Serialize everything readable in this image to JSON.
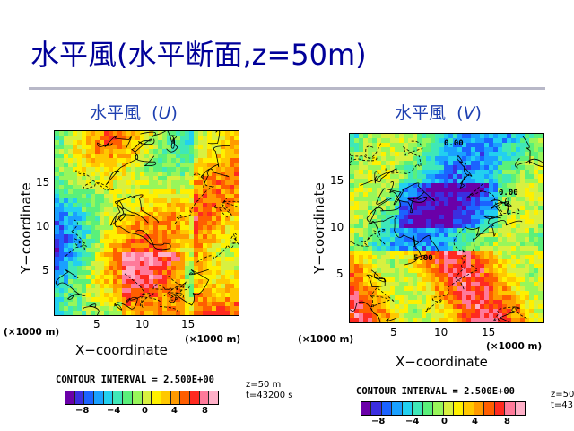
{
  "slide": {
    "title": "水平風(水平断面,z=50m)"
  },
  "panels": [
    {
      "title_prefix": "水平風",
      "var_open": "(",
      "var": "U",
      "var_close": ")",
      "y_label": "Y−coordinate",
      "x_label": "X−coordinate",
      "y_ticks": [
        "15",
        "10",
        "5"
      ],
      "x_ticks": [
        "5",
        "10",
        "15"
      ],
      "x_units_left": "(×1000 m)",
      "x_units_right": "(×1000 m)",
      "contour_interval": "CONTOUR INTERVAL = 2.500E+00",
      "meta": [
        "z=50 m",
        "t=43200 s"
      ],
      "colorbar_ticks": [
        "−8",
        "−4",
        "0",
        "4",
        "8"
      ],
      "contour_labels": []
    },
    {
      "title_prefix": "水平風",
      "var_open": "(",
      "var": "V",
      "var_close": ")",
      "y_label": "Y−coordinate",
      "x_label": "X−coordinate",
      "y_ticks": [
        "15",
        "10",
        "5"
      ],
      "x_ticks": [
        "5",
        "10",
        "15"
      ],
      "x_units_left": "(×1000 m)",
      "x_units_right": "(×1000 m)",
      "contour_interval": "CONTOUR INTERVAL = 2.500E+00",
      "meta": [
        "z=50",
        "t=43"
      ],
      "colorbar_ticks": [
        "−8",
        "−4",
        "0",
        "4",
        "8"
      ],
      "contour_labels": [
        "0.00",
        "0.00",
        "5.00"
      ]
    }
  ],
  "colors": {
    "title": "#000099",
    "colorbar": [
      "#6a00a8",
      "#3b2ee0",
      "#1b63ff",
      "#1aa0ff",
      "#22d0f0",
      "#3fe8b8",
      "#5af07a",
      "#98f65a",
      "#d8f040",
      "#fff000",
      "#ffc800",
      "#ff9a00",
      "#ff5e00",
      "#ff2a20",
      "#ff7a9a",
      "#ffb0c8"
    ]
  }
}
